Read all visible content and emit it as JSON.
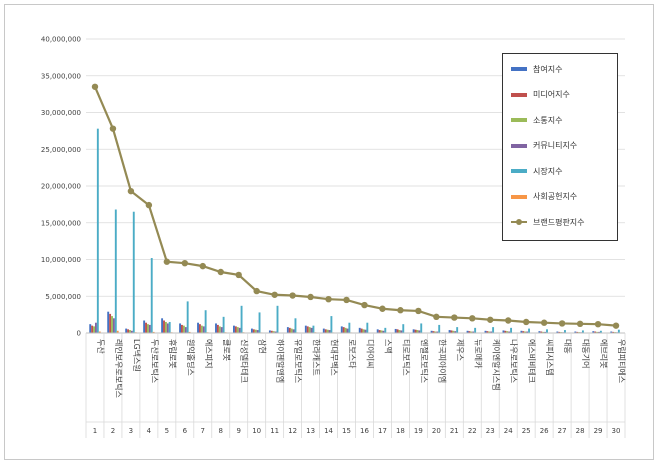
{
  "chart_data": {
    "type": "bar+line",
    "title": "",
    "xlabel": "",
    "ylabel": "",
    "ylim": [
      0,
      40000000
    ],
    "yticks": [
      "0",
      "5,000,000",
      "10,000,000",
      "15,000,000",
      "20,000,000",
      "25,000,000",
      "30,000,000",
      "35,000,000",
      "40,000,000"
    ],
    "rank_labels": [
      "1",
      "2",
      "3",
      "4",
      "5",
      "6",
      "7",
      "8",
      "9",
      "10",
      "11",
      "12",
      "13",
      "14",
      "15",
      "16",
      "17",
      "18",
      "19",
      "20",
      "21",
      "22",
      "23",
      "24",
      "25",
      "26",
      "27",
      "28",
      "29",
      "30"
    ],
    "categories": [
      "두산",
      "레인보우로보틱스",
      "LG넥스원",
      "두산로보틱스",
      "휴림로봇",
      "원익홀딩스",
      "에스피지",
      "클로봇",
      "신성델타테크",
      "삼현",
      "하이젠알앤엠",
      "유일로보틱스",
      "한라캐스트",
      "현대무벡스",
      "로보스타",
      "디아이씨",
      "스맥",
      "티로보틱스",
      "엔젤로보틱스",
      "한국피아이엠",
      "제우스",
      "뉴로메카",
      "케이엔알시스템",
      "나우로보틱스",
      "에스비비테크",
      "씨피시스템",
      "대동",
      "대동기어",
      "에브리봇",
      "우림피티에스"
    ],
    "series": [
      {
        "name": "참여지수",
        "color": "#4472c4",
        "values": [
          1200000,
          2900000,
          600000,
          1700000,
          2000000,
          1300000,
          1400000,
          1300000,
          1000000,
          600000,
          350000,
          800000,
          1000000,
          600000,
          900000,
          700000,
          500000,
          550000,
          500000,
          300000,
          400000,
          300000,
          300000,
          350000,
          300000,
          250000,
          200000,
          200000,
          250000,
          200000
        ]
      },
      {
        "name": "미디어지수",
        "color": "#c0504d",
        "values": [
          1000000,
          2600000,
          500000,
          1400000,
          1700000,
          1100000,
          1200000,
          1100000,
          900000,
          500000,
          300000,
          700000,
          900000,
          500000,
          800000,
          600000,
          400000,
          500000,
          450000,
          250000,
          350000,
          250000,
          250000,
          300000,
          250000,
          200000,
          150000,
          150000,
          200000,
          150000
        ]
      },
      {
        "name": "소통지수",
        "color": "#9bbb59",
        "values": [
          900000,
          2300000,
          400000,
          1200000,
          1500000,
          1000000,
          1000000,
          900000,
          800000,
          450000,
          250000,
          600000,
          800000,
          450000,
          700000,
          500000,
          350000,
          400000,
          400000,
          200000,
          300000,
          200000,
          200000,
          250000,
          200000,
          150000,
          120000,
          120000,
          150000,
          120000
        ]
      },
      {
        "name": "커뮤니티지수",
        "color": "#8064a2",
        "values": [
          1400000,
          2000000,
          300000,
          1100000,
          1300000,
          800000,
          900000,
          800000,
          700000,
          400000,
          200000,
          500000,
          700000,
          400000,
          600000,
          450000,
          300000,
          350000,
          350000,
          200000,
          250000,
          200000,
          200000,
          200000,
          200000,
          150000,
          100000,
          100000,
          150000,
          100000
        ]
      },
      {
        "name": "시장지수",
        "color": "#4bacc6",
        "values": [
          27800000,
          16800000,
          16500000,
          10200000,
          1500000,
          4300000,
          3100000,
          2200000,
          3700000,
          2800000,
          3700000,
          2000000,
          1000000,
          2300000,
          1400000,
          1400000,
          700000,
          1200000,
          1300000,
          1100000,
          800000,
          700000,
          800000,
          700000,
          600000,
          500000,
          400000,
          350000,
          300000,
          450000
        ]
      },
      {
        "name": "사회공헌지수",
        "color": "#f79646",
        "values": [
          200000,
          300000,
          100000,
          150000,
          100000,
          150000,
          100000,
          100000,
          100000,
          80000,
          50000,
          80000,
          100000,
          80000,
          80000,
          60000,
          50000,
          50000,
          50000,
          40000,
          40000,
          30000,
          30000,
          40000,
          30000,
          30000,
          20000,
          20000,
          30000,
          20000
        ]
      }
    ],
    "line": {
      "name": "브랜드평판지수",
      "color": "#948a54",
      "values": [
        33500000,
        27800000,
        19300000,
        17400000,
        9700000,
        9500000,
        9100000,
        8300000,
        7900000,
        5700000,
        5200000,
        5100000,
        4900000,
        4600000,
        4500000,
        3800000,
        3300000,
        3100000,
        3000000,
        2200000,
        2100000,
        2000000,
        1800000,
        1700000,
        1500000,
        1400000,
        1300000,
        1250000,
        1200000,
        1000000
      ]
    },
    "legend_position": "top-right"
  }
}
